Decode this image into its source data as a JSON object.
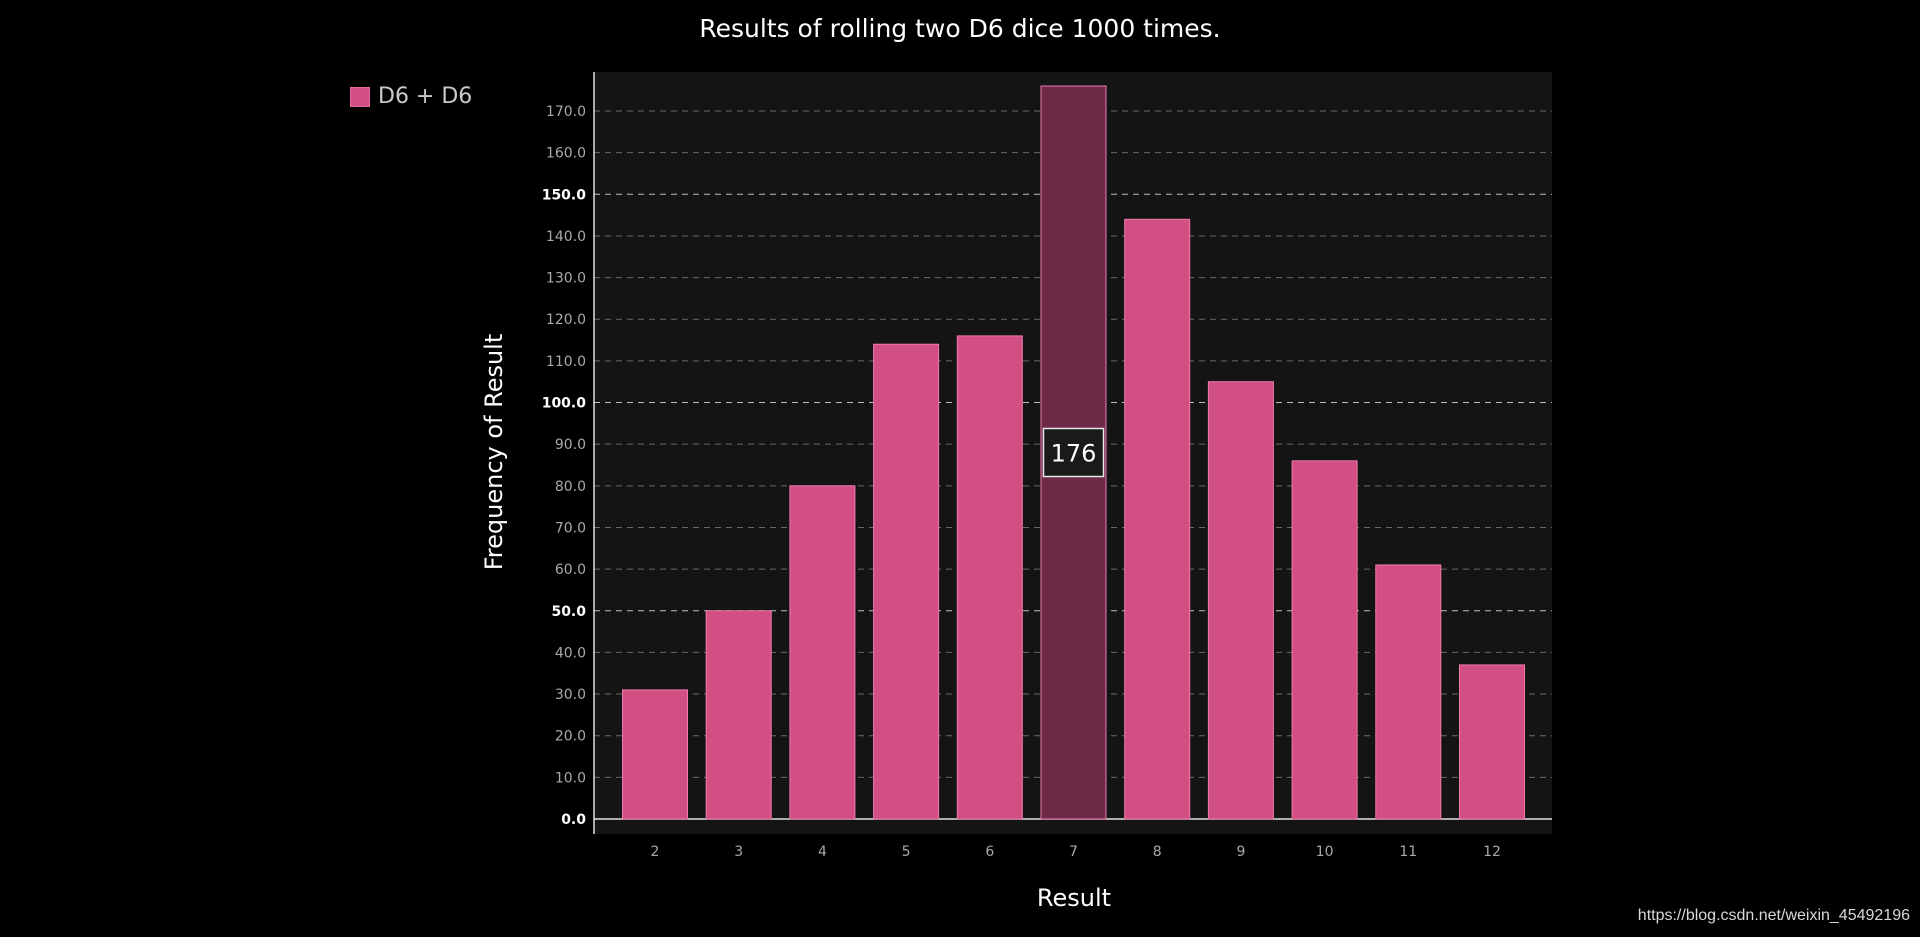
{
  "colors": {
    "background": "#000000",
    "plot_background": "#141414",
    "bar_fill": "#d14f83",
    "bar_stroke": "#f07aad",
    "bar_highlight_fill": "#6e2b48",
    "grid": "#6a6a6a",
    "grid_major": "#bdbdbd",
    "axis": "#e0e0e0"
  },
  "chart_data": {
    "type": "bar",
    "title": "Results of rolling two D6 dice 1000 times.",
    "xlabel": "Result",
    "ylabel": "Frequency of Result",
    "categories": [
      "2",
      "3",
      "4",
      "5",
      "6",
      "7",
      "8",
      "9",
      "10",
      "11",
      "12"
    ],
    "series": [
      {
        "name": "D6 + D6",
        "values": [
          31,
          50,
          80,
          114,
          116,
          176,
          144,
          105,
          86,
          61,
          37
        ]
      }
    ],
    "ylim": [
      0,
      180
    ],
    "yticks": [
      "0.0",
      "10.0",
      "20.0",
      "30.0",
      "40.0",
      "50.0",
      "60.0",
      "70.0",
      "80.0",
      "90.0",
      "100.0",
      "110.0",
      "120.0",
      "130.0",
      "140.0",
      "150.0",
      "160.0",
      "170.0"
    ],
    "major_yticks": [
      "0.0",
      "50.0",
      "100.0",
      "150.0"
    ],
    "grid": true,
    "legend_position": "top-left",
    "highlighted_category": "7",
    "tooltip": "176"
  },
  "watermark": "https://blog.csdn.net/weixin_45492196"
}
